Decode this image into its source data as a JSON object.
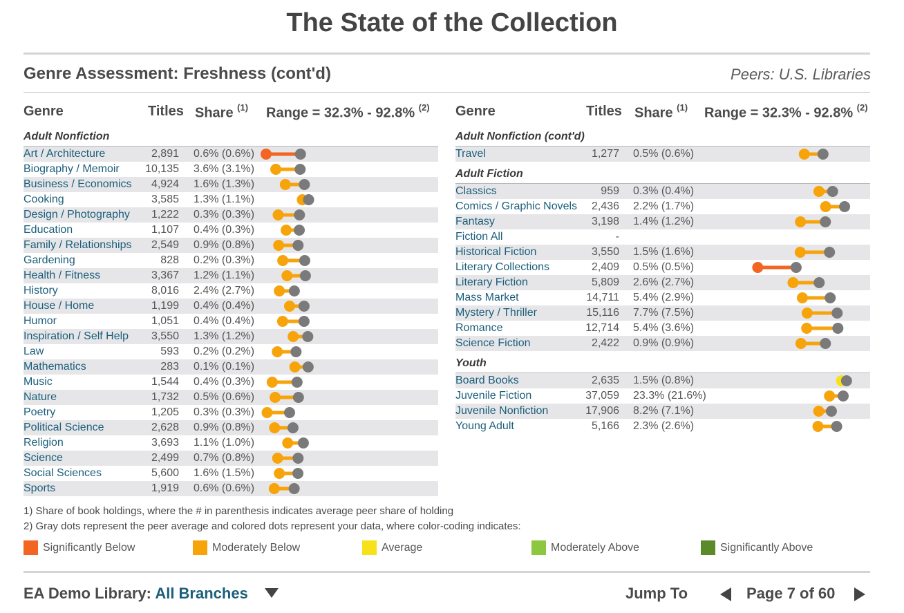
{
  "page": {
    "title": "The State of the Collection",
    "section_title": "Genre Assessment: Freshness (cont'd)",
    "peers": "Peers: U.S. Libraries"
  },
  "columns": {
    "genre": "Genre",
    "titles": "Titles",
    "share": "Share",
    "share_note": "(1)",
    "range": "Range = 32.3% - 92.8%",
    "range_note": "(2)"
  },
  "colors": {
    "significantly_below": "#f26522",
    "moderately_below": "#f7a30a",
    "average": "#f7e21a",
    "moderately_above": "#8dc63f",
    "significantly_above": "#5b8a2a",
    "peer": "#7a7a7a"
  },
  "chart_data": {
    "type": "dumbbell",
    "range": [
      32.3,
      92.8
    ],
    "groups": [
      {
        "name": "Adult Nonfiction",
        "rows": [
          {
            "genre": "Art / Architecture",
            "titles": "2,891",
            "share": "0.6% (0.6%)",
            "value": 32.3,
            "peer": 52.5,
            "category": "significantly_below"
          },
          {
            "genre": "Biography / Memoir",
            "titles": "10,135",
            "share": "3.6% (3.1%)",
            "value": 38.0,
            "peer": 52.3,
            "category": "moderately_below"
          },
          {
            "genre": "Business / Economics",
            "titles": "4,924",
            "share": "1.6% (1.3%)",
            "value": 43.6,
            "peer": 54.8,
            "category": "moderately_below"
          },
          {
            "genre": "Cooking",
            "titles": "3,585",
            "share": "1.3% (1.1%)",
            "value": 53.6,
            "peer": 57.3,
            "category": "moderately_below"
          },
          {
            "genre": "Design / Photography",
            "titles": "1,222",
            "share": "0.3% (0.3%)",
            "value": 39.4,
            "peer": 51.9,
            "category": "moderately_below"
          },
          {
            "genre": "Education",
            "titles": "1,107",
            "share": "0.4% (0.3%)",
            "value": 44.1,
            "peer": 51.8,
            "category": "moderately_below"
          },
          {
            "genre": "Family / Relationships",
            "titles": "2,549",
            "share": "0.9% (0.8%)",
            "value": 39.7,
            "peer": 51.1,
            "category": "moderately_below"
          },
          {
            "genre": "Gardening",
            "titles": "828",
            "share": "0.2% (0.3%)",
            "value": 42.1,
            "peer": 55.0,
            "category": "moderately_below"
          },
          {
            "genre": "Health / Fitness",
            "titles": "3,367",
            "share": "1.2% (1.1%)",
            "value": 44.6,
            "peer": 55.4,
            "category": "moderately_below"
          },
          {
            "genre": "History",
            "titles": "8,016",
            "share": "2.4% (2.7%)",
            "value": 40.1,
            "peer": 48.9,
            "category": "moderately_below"
          },
          {
            "genre": "House / Home",
            "titles": "1,199",
            "share": "0.4% (0.4%)",
            "value": 46.1,
            "peer": 54.6,
            "category": "moderately_below"
          },
          {
            "genre": "Humor",
            "titles": "1,051",
            "share": "0.4% (0.4%)",
            "value": 42.0,
            "peer": 54.6,
            "category": "moderately_below"
          },
          {
            "genre": "Inspiration / Self Help",
            "titles": "3,550",
            "share": "1.3% (1.2%)",
            "value": 48.2,
            "peer": 56.8,
            "category": "moderately_below"
          },
          {
            "genre": "Law",
            "titles": "593",
            "share": "0.2% (0.2%)",
            "value": 38.9,
            "peer": 49.9,
            "category": "moderately_below"
          },
          {
            "genre": "Mathematics",
            "titles": "283",
            "share": "0.1% (0.1%)",
            "value": 49.2,
            "peer": 57.0,
            "category": "moderately_below"
          },
          {
            "genre": "Music",
            "titles": "1,544",
            "share": "0.4% (0.3%)",
            "value": 35.9,
            "peer": 50.5,
            "category": "moderately_below"
          },
          {
            "genre": "Nature",
            "titles": "1,732",
            "share": "0.5% (0.6%)",
            "value": 37.6,
            "peer": 51.3,
            "category": "moderately_below"
          },
          {
            "genre": "Poetry",
            "titles": "1,205",
            "share": "0.3% (0.3%)",
            "value": 32.9,
            "peer": 46.1,
            "category": "moderately_below"
          },
          {
            "genre": "Political Science",
            "titles": "2,628",
            "share": "0.9% (0.8%)",
            "value": 37.3,
            "peer": 48.1,
            "category": "moderately_below"
          },
          {
            "genre": "Religion",
            "titles": "3,693",
            "share": "1.1% (1.0%)",
            "value": 45.0,
            "peer": 54.2,
            "category": "moderately_below"
          },
          {
            "genre": "Science",
            "titles": "2,499",
            "share": "0.7% (0.8%)",
            "value": 39.1,
            "peer": 51.1,
            "category": "moderately_below"
          },
          {
            "genre": "Social Sciences",
            "titles": "5,600",
            "share": "1.6% (1.5%)",
            "value": 40.1,
            "peer": 51.0,
            "category": "moderately_below"
          },
          {
            "genre": "Sports",
            "titles": "1,919",
            "share": "0.6% (0.6%)",
            "value": 37.1,
            "peer": 48.8,
            "category": "moderately_below"
          }
        ]
      },
      {
        "name": "Adult Nonfiction (cont'd)",
        "rows": [
          {
            "genre": "Travel",
            "titles": "1,277",
            "share": "0.5% (0.6%)",
            "value": 74.0,
            "peer": 81.8,
            "category": "moderately_below"
          }
        ]
      },
      {
        "name": "Adult Fiction",
        "rows": [
          {
            "genre": "Classics",
            "titles": "959",
            "share": "0.3% (0.4%)",
            "value": 80.1,
            "peer": 85.8,
            "category": "moderately_below"
          },
          {
            "genre": "Comics / Graphic Novels",
            "titles": "2,436",
            "share": "2.2% (1.7%)",
            "value": 82.9,
            "peer": 90.8,
            "category": "moderately_below"
          },
          {
            "genre": "Fantasy",
            "titles": "3,198",
            "share": "1.4% (1.2%)",
            "value": 72.4,
            "peer": 82.8,
            "category": "moderately_below"
          },
          {
            "genre": "Fiction All",
            "titles": "-",
            "share": "",
            "value": null,
            "peer": null,
            "category": ""
          },
          {
            "genre": "Historical Fiction",
            "titles": "3,550",
            "share": "1.5% (1.6%)",
            "value": 72.3,
            "peer": 84.5,
            "category": "moderately_below"
          },
          {
            "genre": "Literary Collections",
            "titles": "2,409",
            "share": "0.5% (0.5%)",
            "value": 54.6,
            "peer": 70.6,
            "category": "significantly_below"
          },
          {
            "genre": "Literary Fiction",
            "titles": "5,809",
            "share": "2.6% (2.7%)",
            "value": 69.3,
            "peer": 80.2,
            "category": "moderately_below"
          },
          {
            "genre": "Mass Market",
            "titles": "14,711",
            "share": "5.4% (2.9%)",
            "value": 73.2,
            "peer": 84.8,
            "category": "moderately_below"
          },
          {
            "genre": "Mystery / Thriller",
            "titles": "15,116",
            "share": "7.7% (7.5%)",
            "value": 75.2,
            "peer": 87.7,
            "category": "moderately_below"
          },
          {
            "genre": "Romance",
            "titles": "12,714",
            "share": "5.4% (3.6%)",
            "value": 75.0,
            "peer": 88.0,
            "category": "moderately_below"
          },
          {
            "genre": "Science Fiction",
            "titles": "2,422",
            "share": "0.9% (0.9%)",
            "value": 72.6,
            "peer": 82.8,
            "category": "moderately_below"
          }
        ]
      },
      {
        "name": "Youth",
        "rows": [
          {
            "genre": "Board Books",
            "titles": "2,635",
            "share": "1.5% (0.8%)",
            "value": 89.5,
            "peer": 91.6,
            "category": "average"
          },
          {
            "genre": "Juvenile Fiction",
            "titles": "37,059",
            "share": "23.3% (21.6%)",
            "value": 84.5,
            "peer": 90.2,
            "category": "moderately_below"
          },
          {
            "genre": "Juvenile Nonfiction",
            "titles": "17,906",
            "share": "8.2% (7.1%)",
            "value": 80.0,
            "peer": 85.3,
            "category": "moderately_below"
          },
          {
            "genre": "Young Adult",
            "titles": "5,166",
            "share": "2.3% (2.6%)",
            "value": 79.7,
            "peer": 87.5,
            "category": "moderately_below"
          }
        ]
      }
    ]
  },
  "notes": {
    "note1": "1) Share of book holdings, where the # in parenthesis indicates average peer share of holding",
    "note2": "2) Gray dots represent the peer average and colored dots represent your data, where color-coding indicates:"
  },
  "legend": [
    {
      "key": "significantly_below",
      "label": "Significantly Below"
    },
    {
      "key": "moderately_below",
      "label": "Moderately Below"
    },
    {
      "key": "average",
      "label": "Average"
    },
    {
      "key": "moderately_above",
      "label": "Moderately Above"
    },
    {
      "key": "significantly_above",
      "label": "Significantly Above"
    }
  ],
  "footer": {
    "library": "EA Demo Library:",
    "branch": "All Branches",
    "jump_to": "Jump To",
    "page": "Page 7 of 60"
  }
}
